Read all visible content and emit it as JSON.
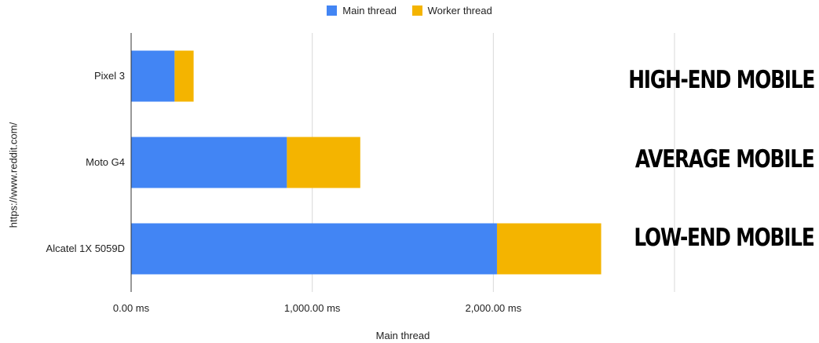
{
  "chart_data": {
    "type": "bar",
    "orientation": "horizontal",
    "stacked": true,
    "categories": [
      "Pixel 3",
      "Moto G4",
      "Alcatel 1X 5059D"
    ],
    "series": [
      {
        "name": "Main thread",
        "values": [
          240,
          860,
          2020
        ],
        "color": "#4285f4"
      },
      {
        "name": "Worker thread",
        "values": [
          105,
          405,
          575
        ],
        "color": "#f4b400"
      }
    ],
    "xlabel": "Main thread",
    "ylabel": "https://www.reddit.com/",
    "xlim": [
      0,
      3000
    ],
    "xticks": [
      {
        "value": 0,
        "label": "0.00 ms"
      },
      {
        "value": 1000,
        "label": "1,000.00 ms"
      },
      {
        "value": 2000,
        "label": "2,000.00 ms"
      }
    ],
    "gridlines": [
      1000,
      2000,
      3000
    ],
    "legend_position": "top",
    "annotations": [
      "HIGH-END MOBILE",
      "AVERAGE MOBILE",
      "LOW-END MOBILE"
    ]
  }
}
